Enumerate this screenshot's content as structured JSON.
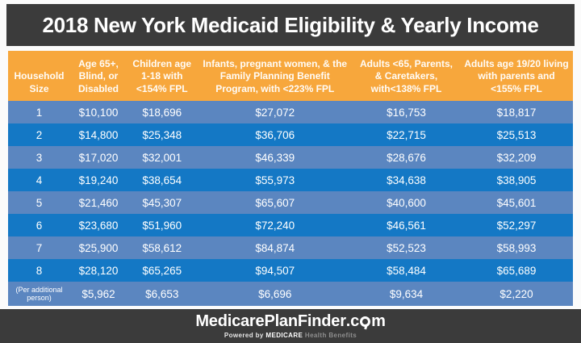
{
  "title": "2018 New York Medicaid Eligibility & Yearly Income",
  "chart_data": {
    "type": "table",
    "title": "2018 New York Medicaid Eligibility & Yearly Income",
    "columns": [
      "Household Size",
      "Age 65+, Blind, or Disabled",
      "Children age 1-18 with <154% FPL",
      "Infants, pregnant women, & the Family Planning Benefit Program, with <223% FPL",
      "Adults <65, Parents, & Caretakers, with<138% FPL",
      "Adults age 19/20 living with parents and <155% FPL"
    ],
    "rows": [
      [
        "1",
        "$10,100",
        "$18,696",
        "$27,072",
        "$16,753",
        "$18,817"
      ],
      [
        "2",
        "$14,800",
        "$25,348",
        "$36,706",
        "$22,715",
        "$25,513"
      ],
      [
        "3",
        "$17,020",
        "$32,001",
        "$46,339",
        "$28,676",
        "$32,209"
      ],
      [
        "4",
        "$19,240",
        "$38,654",
        "$55,973",
        "$34,638",
        "$38,905"
      ],
      [
        "5",
        "$21,460",
        "$45,307",
        "$65,607",
        "$40,600",
        "$45,601"
      ],
      [
        "6",
        "$23,680",
        "$51,960",
        "$72,240",
        "$46,561",
        "$52,297"
      ],
      [
        "7",
        "$25,900",
        "$58,612",
        "$84,874",
        "$52,523",
        "$58,993"
      ],
      [
        "8",
        "$28,120",
        "$65,265",
        "$94,507",
        "$58,484",
        "$65,689"
      ],
      [
        "(Per additional person)",
        "$5,962",
        "$6,653",
        "$6,696",
        "$9,634",
        "$2,220"
      ]
    ]
  },
  "footer": {
    "logo": {
      "part_medicare": "Medicare",
      "part_plan": "Plan",
      "part_finder": "Finder",
      "part_dot_c": ".c",
      "part_m": "m",
      "o_icon": "magnifier-icon"
    },
    "tagline": {
      "powered_by": "Powered by",
      "brand": "MEDICARE",
      "suffix": "Health Benefits"
    }
  },
  "colors": {
    "page_bg": "#FBFBFB",
    "title_bar_bg": "#3B3B3B",
    "header_bg": "#F7A73C",
    "row_light": "#5B86C0",
    "row_dark": "#1478C5",
    "footer_bg": "#3B3B3B",
    "table_text": "#FFFFFF"
  }
}
